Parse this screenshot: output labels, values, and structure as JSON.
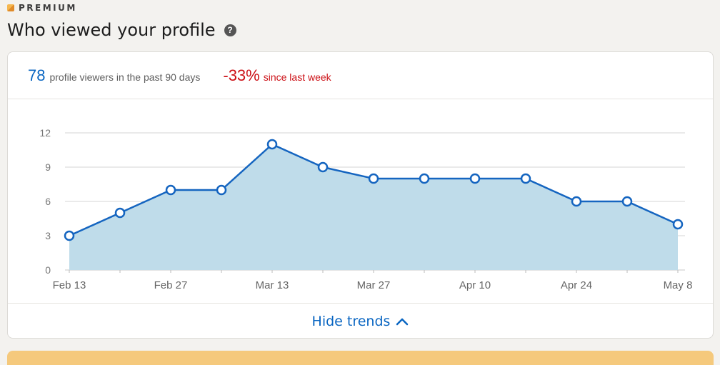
{
  "header": {
    "premium_label": "PREMIUM",
    "title": "Who viewed your profile",
    "help_icon": "question-circle-icon"
  },
  "summary": {
    "viewers_count": "78",
    "viewers_text": "profile viewers in the past 90 days",
    "change_value": "-33%",
    "change_text": "since last week"
  },
  "footer": {
    "hide_trends_label": "Hide trends",
    "hide_trends_icon": "chevron-up-icon"
  },
  "colors": {
    "accent": "#0a66c2",
    "negative": "#cc1016",
    "area_fill": "#bfdcea",
    "line": "#1565c0"
  },
  "chart_data": {
    "type": "area",
    "x": [
      "Feb 13",
      "Feb 20",
      "Feb 27",
      "Mar 6",
      "Mar 13",
      "Mar 20",
      "Mar 27",
      "Apr 3",
      "Apr 10",
      "Apr 17",
      "Apr 24",
      "May 1",
      "May 8"
    ],
    "x_tick_labels": [
      "Feb 13",
      "Feb 27",
      "Mar 13",
      "Mar 27",
      "Apr 10",
      "Apr 24",
      "May 8"
    ],
    "values": [
      3,
      5,
      7,
      7,
      11,
      9,
      8,
      8,
      8,
      8,
      6,
      6,
      4
    ],
    "y_ticks": [
      0,
      3,
      6,
      9,
      12
    ],
    "ylim": [
      0,
      12
    ],
    "grid": true,
    "legend": "none"
  }
}
